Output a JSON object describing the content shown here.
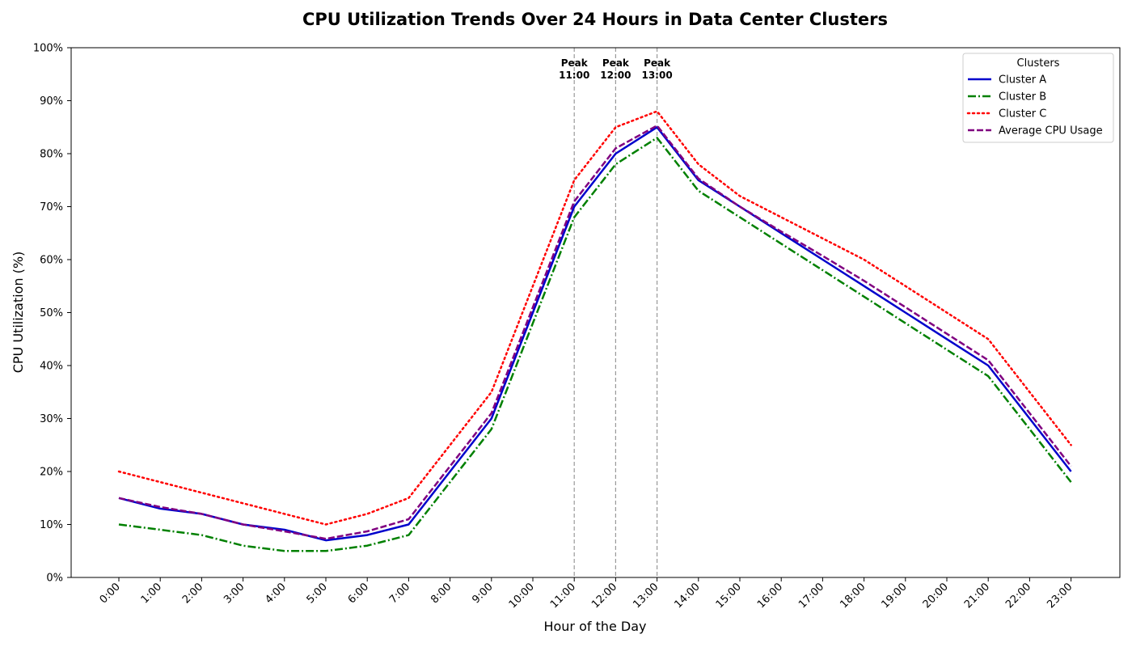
{
  "chart_data": {
    "type": "line",
    "title": "CPU Utilization Trends Over 24 Hours in Data Center Clusters",
    "xlabel": "Hour of the Day",
    "ylabel": "CPU Utilization (%)",
    "ylim": [
      0,
      100
    ],
    "yticks": [
      "0%",
      "10%",
      "20%",
      "30%",
      "40%",
      "50%",
      "60%",
      "70%",
      "80%",
      "90%",
      "100%"
    ],
    "categories": [
      "0:00",
      "1:00",
      "2:00",
      "3:00",
      "4:00",
      "5:00",
      "6:00",
      "7:00",
      "8:00",
      "9:00",
      "10:00",
      "11:00",
      "12:00",
      "13:00",
      "14:00",
      "15:00",
      "16:00",
      "17:00",
      "18:00",
      "19:00",
      "20:00",
      "21:00",
      "22:00",
      "23:00"
    ],
    "grid": false,
    "legend": {
      "title": "Clusters",
      "placement": "top-right"
    },
    "series": [
      {
        "name": "Cluster A",
        "color": "#0000cc",
        "style": "solid",
        "values": [
          15,
          13,
          12,
          10,
          9,
          7,
          8,
          10,
          20,
          30,
          50,
          70,
          80,
          85,
          75,
          70,
          65,
          60,
          55,
          50,
          45,
          40,
          30,
          20
        ]
      },
      {
        "name": "Cluster B",
        "color": "#008000",
        "style": "dashdot",
        "values": [
          10,
          9,
          8,
          6,
          5,
          5,
          6,
          8,
          18,
          28,
          48,
          68,
          78,
          83,
          73,
          68,
          63,
          58,
          53,
          48,
          43,
          38,
          28,
          18
        ]
      },
      {
        "name": "Cluster C",
        "color": "#ff0000",
        "style": "dotted",
        "values": [
          20,
          18,
          16,
          14,
          12,
          10,
          12,
          15,
          25,
          35,
          55,
          75,
          85,
          88,
          78,
          72,
          68,
          64,
          60,
          55,
          50,
          45,
          35,
          25
        ]
      },
      {
        "name": "Average CPU Usage",
        "color": "#800080",
        "style": "dashed",
        "values": [
          15,
          13.3,
          12,
          10,
          8.7,
          7.3,
          8.7,
          11,
          21,
          31,
          51,
          71,
          81,
          85.3,
          75.3,
          70,
          65.3,
          60.7,
          56,
          51,
          46,
          41,
          31,
          21
        ]
      }
    ],
    "annotations": [
      {
        "x": "11:00",
        "line1": "Peak",
        "line2": "11:00"
      },
      {
        "x": "12:00",
        "line1": "Peak",
        "line2": "12:00"
      },
      {
        "x": "13:00",
        "line1": "Peak",
        "line2": "13:00"
      }
    ]
  }
}
